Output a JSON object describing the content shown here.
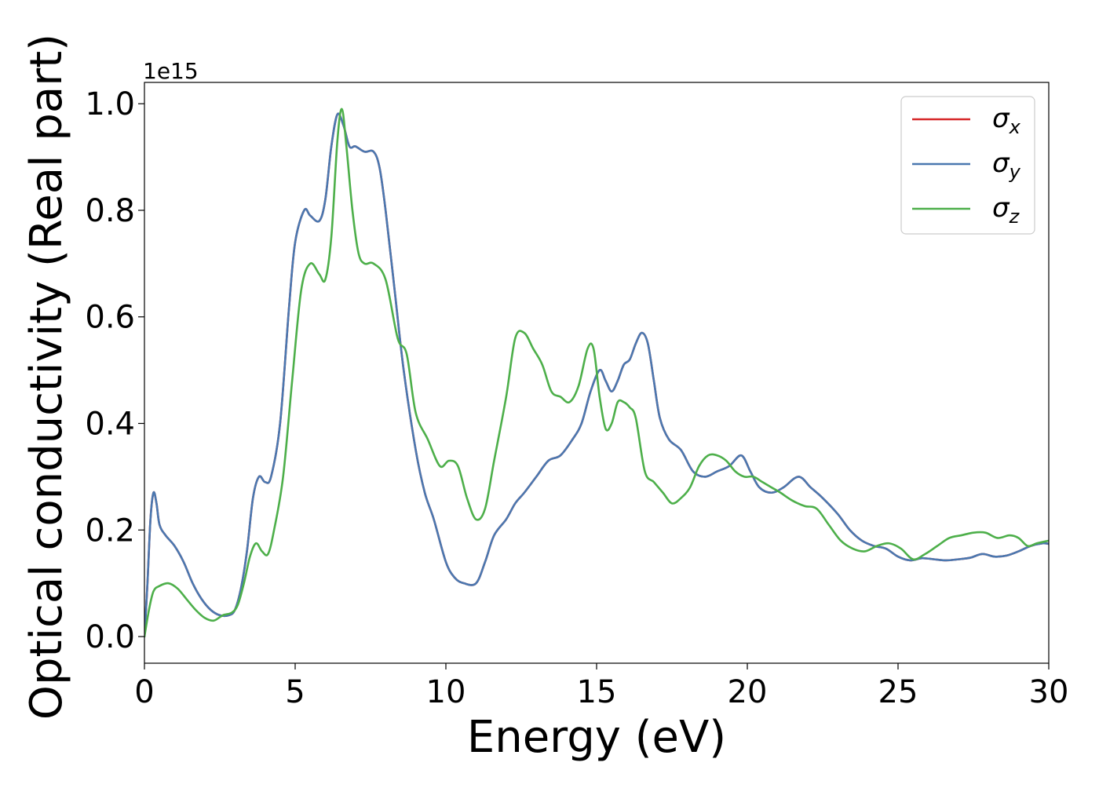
{
  "chart_data": {
    "type": "line",
    "xlabel": "Energy (eV)",
    "ylabel": "Optical conductivity (Real part)",
    "y_offset_text": "1e15",
    "xlim": [
      0,
      30
    ],
    "ylim": [
      -0.05,
      1.04
    ],
    "x_ticks": [
      0,
      5,
      10,
      15,
      20,
      25,
      30
    ],
    "y_ticks": [
      0.0,
      0.2,
      0.4,
      0.6,
      0.8,
      1.0
    ],
    "x_tick_labels": [
      "0",
      "5",
      "10",
      "15",
      "20",
      "25",
      "30"
    ],
    "y_tick_labels": [
      "0.0",
      "0.2",
      "0.4",
      "0.6",
      "0.8",
      "1.0"
    ],
    "grid": false,
    "legend_position": "top-right",
    "series": [
      {
        "name": "σx",
        "symbol": "σ",
        "subscript": "x",
        "color": "#d62728",
        "x": [
          0,
          0.1,
          0.2,
          0.3,
          0.4,
          0.5,
          0.7,
          1.0,
          1.3,
          1.6,
          1.9,
          2.2,
          2.5,
          2.8,
          3.0,
          3.2,
          3.4,
          3.6,
          3.8,
          4.0,
          4.2,
          4.5,
          4.8,
          5.0,
          5.3,
          5.5,
          5.8,
          6.0,
          6.2,
          6.4,
          6.6,
          6.8,
          7.0,
          7.3,
          7.6,
          7.8,
          8.0,
          8.3,
          8.6,
          9.0,
          9.3,
          9.6,
          10.0,
          10.3,
          10.6,
          11.0,
          11.3,
          11.6,
          12.0,
          12.3,
          12.6,
          13.0,
          13.4,
          13.8,
          14.2,
          14.5,
          14.8,
          15.1,
          15.3,
          15.5,
          15.7,
          15.9,
          16.1,
          16.3,
          16.5,
          16.7,
          16.9,
          17.1,
          17.4,
          17.8,
          18.2,
          18.6,
          19.0,
          19.4,
          19.8,
          20.1,
          20.4,
          20.8,
          21.2,
          21.7,
          22.1,
          22.5,
          23.0,
          23.4,
          23.8,
          24.2,
          24.6,
          25.0,
          25.4,
          25.8,
          26.2,
          26.6,
          27.0,
          27.4,
          27.8,
          28.2,
          28.6,
          29.0,
          29.4,
          29.8,
          30.0
        ],
        "values": [
          0.0,
          0.1,
          0.22,
          0.27,
          0.25,
          0.21,
          0.19,
          0.17,
          0.14,
          0.1,
          0.07,
          0.05,
          0.04,
          0.04,
          0.05,
          0.09,
          0.16,
          0.26,
          0.3,
          0.29,
          0.3,
          0.4,
          0.62,
          0.74,
          0.8,
          0.79,
          0.78,
          0.82,
          0.92,
          0.98,
          0.96,
          0.92,
          0.92,
          0.91,
          0.91,
          0.88,
          0.8,
          0.65,
          0.5,
          0.35,
          0.27,
          0.22,
          0.14,
          0.11,
          0.1,
          0.1,
          0.14,
          0.19,
          0.22,
          0.25,
          0.27,
          0.3,
          0.33,
          0.34,
          0.37,
          0.4,
          0.46,
          0.5,
          0.48,
          0.46,
          0.48,
          0.51,
          0.52,
          0.55,
          0.57,
          0.55,
          0.48,
          0.41,
          0.37,
          0.35,
          0.31,
          0.3,
          0.31,
          0.32,
          0.34,
          0.31,
          0.28,
          0.27,
          0.28,
          0.3,
          0.28,
          0.26,
          0.23,
          0.2,
          0.18,
          0.17,
          0.165,
          0.15,
          0.143,
          0.147,
          0.145,
          0.143,
          0.145,
          0.148,
          0.155,
          0.15,
          0.152,
          0.16,
          0.17,
          0.175,
          0.174
        ]
      },
      {
        "name": "σy",
        "symbol": "σ",
        "subscript": "y",
        "color": "#4a78b0",
        "x": [
          0,
          0.1,
          0.2,
          0.3,
          0.4,
          0.5,
          0.7,
          1.0,
          1.3,
          1.6,
          1.9,
          2.2,
          2.5,
          2.8,
          3.0,
          3.2,
          3.4,
          3.6,
          3.8,
          4.0,
          4.2,
          4.5,
          4.8,
          5.0,
          5.3,
          5.5,
          5.8,
          6.0,
          6.2,
          6.4,
          6.6,
          6.8,
          7.0,
          7.3,
          7.6,
          7.8,
          8.0,
          8.3,
          8.6,
          9.0,
          9.3,
          9.6,
          10.0,
          10.3,
          10.6,
          11.0,
          11.3,
          11.6,
          12.0,
          12.3,
          12.6,
          13.0,
          13.4,
          13.8,
          14.2,
          14.5,
          14.8,
          15.1,
          15.3,
          15.5,
          15.7,
          15.9,
          16.1,
          16.3,
          16.5,
          16.7,
          16.9,
          17.1,
          17.4,
          17.8,
          18.2,
          18.6,
          19.0,
          19.4,
          19.8,
          20.1,
          20.4,
          20.8,
          21.2,
          21.7,
          22.1,
          22.5,
          23.0,
          23.4,
          23.8,
          24.2,
          24.6,
          25.0,
          25.4,
          25.8,
          26.2,
          26.6,
          27.0,
          27.4,
          27.8,
          28.2,
          28.6,
          29.0,
          29.4,
          29.8,
          30.0
        ],
        "values": [
          0.0,
          0.1,
          0.22,
          0.27,
          0.25,
          0.21,
          0.19,
          0.17,
          0.14,
          0.1,
          0.07,
          0.05,
          0.04,
          0.04,
          0.05,
          0.09,
          0.16,
          0.26,
          0.3,
          0.29,
          0.3,
          0.4,
          0.62,
          0.74,
          0.8,
          0.79,
          0.78,
          0.82,
          0.92,
          0.98,
          0.96,
          0.92,
          0.92,
          0.91,
          0.91,
          0.88,
          0.8,
          0.65,
          0.5,
          0.35,
          0.27,
          0.22,
          0.14,
          0.11,
          0.1,
          0.1,
          0.14,
          0.19,
          0.22,
          0.25,
          0.27,
          0.3,
          0.33,
          0.34,
          0.37,
          0.4,
          0.46,
          0.5,
          0.48,
          0.46,
          0.48,
          0.51,
          0.52,
          0.55,
          0.57,
          0.55,
          0.48,
          0.41,
          0.37,
          0.35,
          0.31,
          0.3,
          0.31,
          0.32,
          0.34,
          0.31,
          0.28,
          0.27,
          0.28,
          0.3,
          0.28,
          0.26,
          0.23,
          0.2,
          0.18,
          0.17,
          0.165,
          0.15,
          0.143,
          0.147,
          0.145,
          0.143,
          0.145,
          0.148,
          0.155,
          0.15,
          0.152,
          0.16,
          0.17,
          0.175,
          0.174
        ]
      },
      {
        "name": "σz",
        "symbol": "σ",
        "subscript": "z",
        "color": "#4daf4a",
        "x": [
          0,
          0.15,
          0.3,
          0.5,
          0.8,
          1.1,
          1.4,
          1.7,
          2.0,
          2.3,
          2.6,
          2.9,
          3.1,
          3.3,
          3.5,
          3.7,
          3.9,
          4.1,
          4.3,
          4.6,
          4.9,
          5.2,
          5.5,
          5.8,
          6.0,
          6.2,
          6.4,
          6.55,
          6.7,
          6.9,
          7.1,
          7.3,
          7.6,
          8.0,
          8.4,
          8.7,
          9.0,
          9.4,
          9.8,
          10.1,
          10.4,
          10.7,
          11.0,
          11.3,
          11.6,
          12.0,
          12.3,
          12.6,
          12.9,
          13.2,
          13.5,
          13.8,
          14.1,
          14.4,
          14.7,
          14.9,
          15.1,
          15.3,
          15.5,
          15.7,
          15.9,
          16.1,
          16.3,
          16.6,
          16.9,
          17.2,
          17.5,
          17.8,
          18.1,
          18.4,
          18.7,
          19.0,
          19.3,
          19.6,
          19.9,
          20.2,
          20.5,
          20.8,
          21.1,
          21.5,
          21.9,
          22.3,
          22.7,
          23.1,
          23.5,
          23.9,
          24.3,
          24.7,
          25.1,
          25.5,
          25.9,
          26.3,
          26.7,
          27.1,
          27.5,
          27.9,
          28.3,
          28.7,
          29.0,
          29.3,
          29.6,
          30.0
        ],
        "values": [
          0.0,
          0.05,
          0.085,
          0.095,
          0.1,
          0.09,
          0.07,
          0.05,
          0.035,
          0.03,
          0.04,
          0.045,
          0.06,
          0.1,
          0.15,
          0.175,
          0.16,
          0.155,
          0.2,
          0.3,
          0.48,
          0.65,
          0.7,
          0.68,
          0.67,
          0.75,
          0.93,
          0.99,
          0.92,
          0.8,
          0.72,
          0.7,
          0.7,
          0.67,
          0.56,
          0.53,
          0.42,
          0.37,
          0.32,
          0.33,
          0.32,
          0.26,
          0.22,
          0.24,
          0.33,
          0.45,
          0.56,
          0.57,
          0.54,
          0.51,
          0.46,
          0.45,
          0.44,
          0.47,
          0.54,
          0.54,
          0.45,
          0.39,
          0.4,
          0.44,
          0.44,
          0.43,
          0.41,
          0.31,
          0.29,
          0.27,
          0.25,
          0.26,
          0.28,
          0.32,
          0.34,
          0.34,
          0.33,
          0.31,
          0.3,
          0.3,
          0.29,
          0.28,
          0.27,
          0.255,
          0.245,
          0.24,
          0.21,
          0.18,
          0.165,
          0.16,
          0.17,
          0.175,
          0.165,
          0.145,
          0.155,
          0.17,
          0.185,
          0.19,
          0.195,
          0.195,
          0.185,
          0.19,
          0.185,
          0.17,
          0.175,
          0.18
        ]
      }
    ]
  }
}
